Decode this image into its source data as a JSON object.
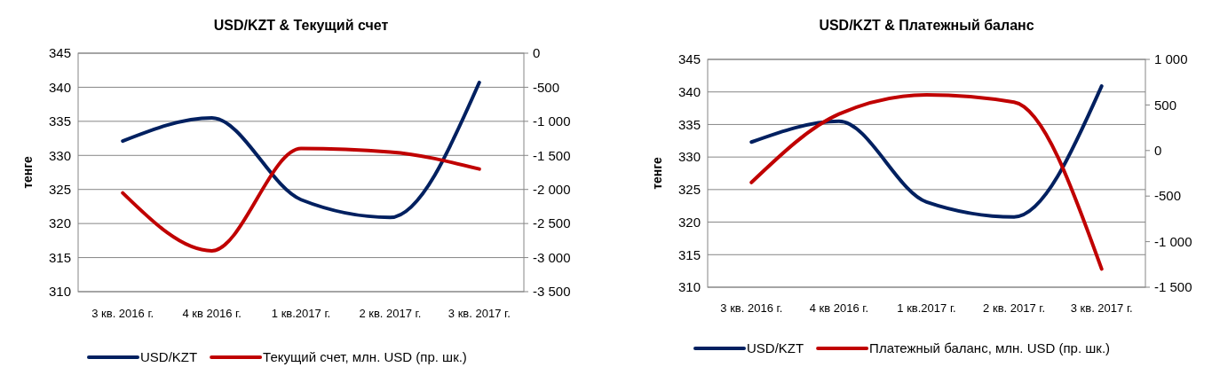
{
  "chart_data": [
    {
      "type": "line",
      "title": "USD/KZT & Текущий счет",
      "ylabel": "тенге",
      "categories": [
        "3 кв. 2016 г.",
        "4 кв 2016 г.",
        "1 кв.2017 г.",
        "2 кв. 2017 г.",
        "3 кв. 2017 г."
      ],
      "series": [
        {
          "name": "USD/KZT",
          "color": "#002060",
          "values": [
            332.1,
            335.5,
            323.5,
            320.9,
            340.7
          ]
        },
        {
          "name": "Текущий счет, млн. USD (пр. шк.)",
          "color": "#c00000",
          "axis": "y2",
          "values": [
            -2050,
            -2900,
            -1400,
            -1450,
            -1700
          ]
        }
      ],
      "ylim": [
        310,
        345
      ],
      "yticks": [
        310,
        315,
        320,
        325,
        330,
        335,
        340,
        345
      ],
      "y2lim": [
        -3500,
        0
      ],
      "y2ticks": [
        {
          "value": -3500,
          "label": "-3 500"
        },
        {
          "value": -3000,
          "label": "-3 000"
        },
        {
          "value": -2500,
          "label": "-2 500"
        },
        {
          "value": -2000,
          "label": "-2 000"
        },
        {
          "value": -1500,
          "label": "-1 500"
        },
        {
          "value": -1000,
          "label": "-1 000"
        },
        -500,
        0
      ],
      "grid": "y",
      "legend": "bottom",
      "marker": "none",
      "line_style": "solid"
    },
    {
      "type": "line",
      "title": "USD/KZT & Платежный баланс",
      "ylabel": "тенге",
      "categories": [
        "3 кв. 2016 г.",
        "4 кв 2016 г.",
        "1 кв.2017 г.",
        "2 кв. 2017 г.",
        "3 кв. 2017 г."
      ],
      "series": [
        {
          "name": "USD/KZT",
          "color": "#002060",
          "values": [
            332.3,
            335.5,
            323.1,
            320.8,
            340.9
          ]
        },
        {
          "name": "Платежный баланс, млн. USD (пр. шк.)",
          "color": "#c00000",
          "axis": "y2",
          "values": [
            -350,
            400,
            610,
            530,
            -1300
          ]
        }
      ],
      "ylim": [
        310,
        345
      ],
      "yticks": [
        310,
        315,
        320,
        325,
        330,
        335,
        340,
        345
      ],
      "y2lim": [
        -1500,
        1000
      ],
      "y2ticks": [
        {
          "value": -1500,
          "label": "-1 500"
        },
        {
          "value": -1000,
          "label": "-1 000"
        },
        -500,
        0,
        500,
        {
          "value": 1000,
          "label": "1 000"
        }
      ],
      "grid": "y",
      "legend": "bottom",
      "marker": "none",
      "line_style": "solid"
    }
  ]
}
